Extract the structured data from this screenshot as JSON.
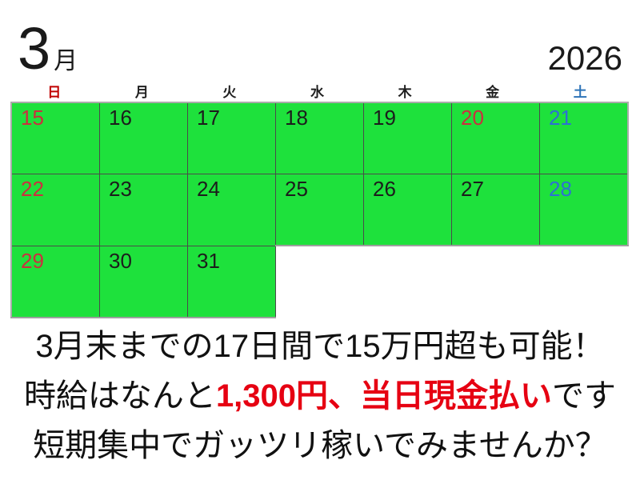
{
  "header": {
    "month": "3",
    "month_unit": "月",
    "year": "2026"
  },
  "weekday_header": [
    {
      "label": "日",
      "type": "sun"
    },
    {
      "label": "月",
      "type": "weekday"
    },
    {
      "label": "火",
      "type": "weekday"
    },
    {
      "label": "水",
      "type": "weekday"
    },
    {
      "label": "木",
      "type": "weekday"
    },
    {
      "label": "金",
      "type": "weekday"
    },
    {
      "label": "土",
      "type": "sat"
    }
  ],
  "calendar": {
    "rows": [
      [
        {
          "day": "15",
          "type": "sun"
        },
        {
          "day": "16",
          "type": "weekday"
        },
        {
          "day": "17",
          "type": "weekday"
        },
        {
          "day": "18",
          "type": "weekday"
        },
        {
          "day": "19",
          "type": "weekday"
        },
        {
          "day": "20",
          "type": "holiday"
        },
        {
          "day": "21",
          "type": "sat"
        }
      ],
      [
        {
          "day": "22",
          "type": "sun"
        },
        {
          "day": "23",
          "type": "weekday"
        },
        {
          "day": "24",
          "type": "weekday"
        },
        {
          "day": "25",
          "type": "weekday"
        },
        {
          "day": "26",
          "type": "weekday"
        },
        {
          "day": "27",
          "type": "weekday"
        },
        {
          "day": "28",
          "type": "sat"
        }
      ],
      [
        {
          "day": "29",
          "type": "sun"
        },
        {
          "day": "30",
          "type": "weekday"
        },
        {
          "day": "31",
          "type": "weekday"
        },
        null,
        null,
        null,
        null
      ]
    ]
  },
  "promo": {
    "line1": "3月末までの17日間で15万円超も可能！",
    "line2_prefix": "時給はなんと",
    "line2_highlight": "1,300円、当日現金払い",
    "line2_suffix": "です",
    "line3": "短期集中でガッツリ稼いでみませんか？"
  },
  "colors": {
    "cell_green": "#1ee13c",
    "header_red": "#c00000",
    "header_blue": "#2e74b8",
    "number_red": "#cc2f3f",
    "number_blue": "#2e6fd4",
    "promo_red": "#e60012"
  }
}
